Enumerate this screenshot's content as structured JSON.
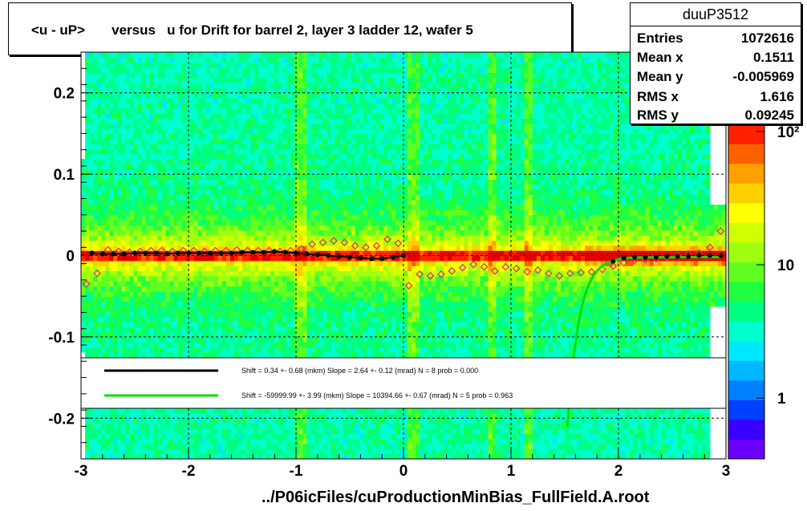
{
  "title": "<u - uP>       versus   u for Drift for barrel 2, layer 3 ladder 12, wafer 5",
  "footer": "../P06icFiles/cuProductionMinBias_FullField.A.root",
  "stats": {
    "name": "duuP3512",
    "rows": [
      {
        "key": "Entries",
        "value": "1072616"
      },
      {
        "key": "Mean x",
        "value": "0.1511"
      },
      {
        "key": "Mean y",
        "value": "-0.005969"
      },
      {
        "key": "RMS x",
        "value": "1.616"
      },
      {
        "key": "RMS y",
        "value": "0.09245"
      }
    ]
  },
  "colors": {
    "black_fit": "#000000",
    "green_fit": "#00e000",
    "profile_marker": "#d0306a"
  },
  "chart_data": {
    "type": "heatmap",
    "xlim": [
      -3,
      3
    ],
    "ylim": [
      -0.25,
      0.25
    ],
    "x_ticks": [
      "-3",
      "-2",
      "-1",
      "0",
      "1",
      "2",
      "3"
    ],
    "x_tick_values": [
      -3,
      -2,
      -1,
      0,
      1,
      2,
      3
    ],
    "y_ticks": [
      "-0.2",
      "-0.1",
      "0",
      "0.1",
      "0.2"
    ],
    "y_tick_values": [
      -0.2,
      -0.1,
      0,
      0.1,
      0.2
    ],
    "colorbar_ticks": [
      "1",
      "10",
      "10²"
    ],
    "colorbar_tick_values": [
      1,
      10,
      100
    ],
    "colorbar_scale": "log",
    "grid": true,
    "legend": [
      {
        "label": "Shift =     0.34 +- 0.68 (mkm) Slope =     2.64 +- 0.12 (mrad)  N = 8 prob = 0.000",
        "color": "#000000"
      },
      {
        "label": "Shift = -59999.99 +- 3.99 (mkm) Slope = 10394.66 +- 0.67 (mrad)  N = 5 prob = 0.963",
        "color": "#00e000"
      }
    ],
    "series": [
      {
        "marker": "filled-circle",
        "x": [
          -2.9,
          -2.8,
          -2.7,
          -2.6,
          -2.5,
          -2.4,
          -2.3,
          -2.2,
          -2.1,
          -2.0,
          -1.9,
          -1.8,
          -1.7,
          -1.6,
          -1.5,
          -1.4,
          -1.3,
          -1.2,
          -1.1,
          -1.0,
          -0.9,
          -0.8,
          -0.7,
          -0.6,
          -0.5,
          -0.4,
          -0.3,
          -0.2,
          -0.1,
          0.0
        ],
        "y": [
          0.003,
          0.002,
          0.002,
          0.002,
          0.003,
          0.003,
          0.003,
          0.002,
          0.003,
          0.003,
          0.003,
          0.003,
          0.003,
          0.003,
          0.004,
          0.004,
          0.004,
          0.005,
          0.004,
          0.003,
          0.002,
          0.001,
          0.0,
          -0.001,
          -0.002,
          -0.003,
          -0.004,
          -0.004,
          -0.002,
          0.0
        ]
      },
      {
        "marker": "filled-circle",
        "x": [
          1.95,
          2.05,
          2.15,
          2.25,
          2.35,
          2.45,
          2.55,
          2.65,
          2.75,
          2.85,
          2.95
        ],
        "y": [
          -0.007,
          -0.003,
          -0.002,
          -0.002,
          -0.002,
          -0.001,
          -0.001,
          -0.001,
          0.0,
          0.0,
          0.0
        ]
      },
      {
        "marker": "open-diamond",
        "x": [
          -2.95,
          -2.85,
          -2.75,
          -2.65,
          -2.55,
          -2.45,
          -2.35,
          -2.25,
          -2.15,
          -2.05,
          -1.95,
          -1.85,
          -1.75,
          -1.65,
          -1.55,
          -1.45,
          -1.35,
          -1.25,
          -1.15,
          -1.05,
          -0.95,
          -0.85,
          -0.75,
          -0.65,
          -0.55,
          -0.45,
          -0.35,
          -0.25,
          -0.15,
          -0.05,
          0.05,
          0.15,
          0.25,
          0.35,
          0.45,
          0.55,
          0.65,
          0.75,
          0.85,
          0.95,
          1.05,
          1.15,
          1.25,
          1.35,
          1.45,
          1.55,
          1.65,
          1.75,
          1.85,
          1.95,
          2.05,
          2.15,
          2.25,
          2.35,
          2.45,
          2.55,
          2.65,
          2.75,
          2.85,
          2.95
        ],
        "y": [
          -0.035,
          -0.022,
          0.007,
          0.005,
          0.004,
          0.005,
          0.006,
          0.006,
          0.005,
          0.006,
          0.006,
          0.005,
          0.006,
          0.006,
          0.007,
          0.006,
          0.006,
          0.006,
          0.005,
          0.006,
          0.008,
          0.014,
          0.016,
          0.018,
          0.016,
          0.012,
          0.01,
          0.012,
          0.02,
          0.015,
          -0.037,
          -0.023,
          -0.025,
          -0.023,
          -0.019,
          -0.015,
          -0.011,
          -0.014,
          -0.019,
          -0.014,
          -0.016,
          -0.02,
          -0.018,
          -0.022,
          -0.025,
          -0.022,
          -0.021,
          -0.02,
          -0.017,
          -0.013,
          -0.009,
          -0.006,
          -0.005,
          -0.004,
          -0.002,
          0.0,
          0.002,
          0.003,
          0.01,
          0.03
        ]
      }
    ]
  }
}
